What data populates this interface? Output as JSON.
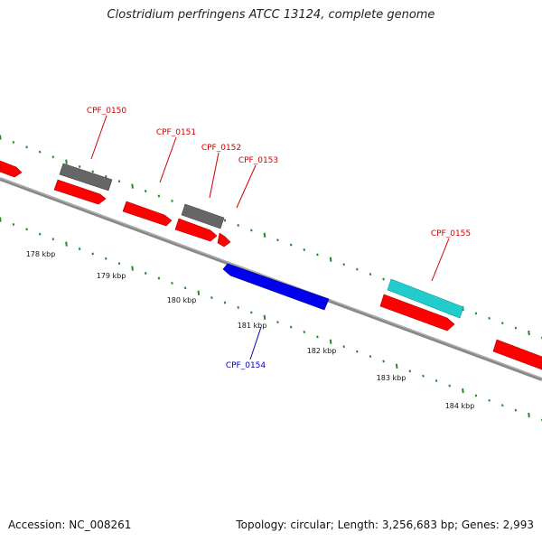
{
  "title": "Clostridium perfringens ATCC 13124, complete genome",
  "accession": "Accession: NC_008261",
  "topology": "Topology: circular; Length: 3,256,683 bp; Genes: 2,993",
  "colors": {
    "backbone": "#808080",
    "tick": "#228b22",
    "forward_gene": "#ff0000",
    "reverse_gene": "#0000ff",
    "gray_feature": "#666666",
    "cyan_feature": "#20c8c8",
    "label_forward": "#cc0000",
    "label_reverse": "#0000cc"
  },
  "scale_labels": [
    "178 kbp",
    "179 kbp",
    "180 kbp",
    "181 kbp",
    "182 kbp",
    "183 kbp",
    "184 kbp"
  ],
  "gene_labels": [
    {
      "name": "CPF_0150",
      "strand": "forward"
    },
    {
      "name": "CPF_0151",
      "strand": "forward"
    },
    {
      "name": "CPF_0152",
      "strand": "forward"
    },
    {
      "name": "CPF_0153",
      "strand": "forward"
    },
    {
      "name": "CPF_0154",
      "strand": "reverse"
    },
    {
      "name": "CPF_0155",
      "strand": "forward"
    }
  ]
}
